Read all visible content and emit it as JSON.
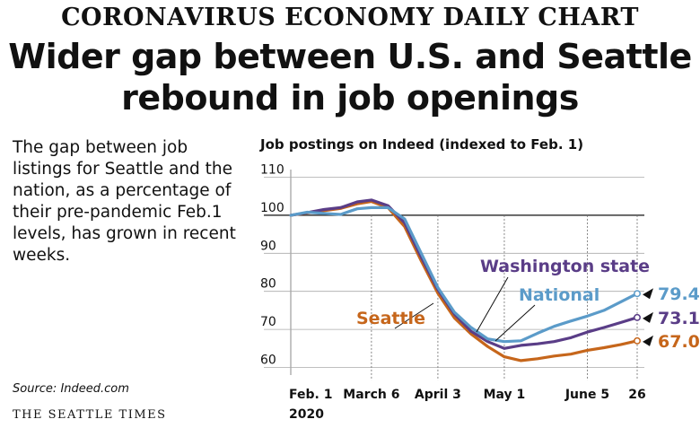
{
  "header": {
    "kicker": "CORONAVIRUS ECONOMY DAILY CHART",
    "headline_line1": "Wider gap between U.S. and Seattle",
    "headline_line2": "rebound in job openings"
  },
  "blurb": "The gap between job listings for Seattle and the nation, as a percentage of their pre-pandemic Feb.1 levels, has grown in recent weeks.",
  "source": "Source: Indeed.com",
  "credit": "THE SEATTLE TIMES",
  "chart_data": {
    "type": "line",
    "title": "Job postings on Indeed (indexed to Feb. 1)",
    "xlabel": "",
    "ylabel": "",
    "ylim": [
      58,
      112
    ],
    "y_ticks": [
      60,
      70,
      80,
      90,
      100,
      110
    ],
    "x_range": [
      "2020-02-01",
      "2020-06-26"
    ],
    "x_ticks": [
      {
        "date": "2020-02-01",
        "label": "Feb. 1",
        "sublabel": "2020"
      },
      {
        "date": "2020-03-06",
        "label": "March 6",
        "sublabel": ""
      },
      {
        "date": "2020-04-03",
        "label": "April 3",
        "sublabel": ""
      },
      {
        "date": "2020-05-01",
        "label": "May 1",
        "sublabel": ""
      },
      {
        "date": "2020-06-05",
        "label": "June 5",
        "sublabel": ""
      },
      {
        "date": "2020-06-26",
        "label": "26",
        "sublabel": ""
      }
    ],
    "reference_line": 100,
    "series": [
      {
        "name": "National",
        "color": "#5b9bc9",
        "end_label": "79.4",
        "points": [
          [
            "2020-02-01",
            100
          ],
          [
            "2020-02-08",
            100.8
          ],
          [
            "2020-02-15",
            100.5
          ],
          [
            "2020-02-22",
            100.2
          ],
          [
            "2020-02-29",
            101.7
          ],
          [
            "2020-03-06",
            102.0
          ],
          [
            "2020-03-13",
            102.0
          ],
          [
            "2020-03-20",
            99.0
          ],
          [
            "2020-03-27",
            90.0
          ],
          [
            "2020-04-03",
            81.0
          ],
          [
            "2020-04-10",
            74.5
          ],
          [
            "2020-04-17",
            70.5
          ],
          [
            "2020-04-24",
            67.5
          ],
          [
            "2020-05-01",
            66.8
          ],
          [
            "2020-05-08",
            67.0
          ],
          [
            "2020-05-15",
            69.0
          ],
          [
            "2020-05-22",
            70.8
          ],
          [
            "2020-05-29",
            72.2
          ],
          [
            "2020-06-05",
            73.5
          ],
          [
            "2020-06-12",
            75.0
          ],
          [
            "2020-06-19",
            77.2
          ],
          [
            "2020-06-26",
            79.4
          ]
        ]
      },
      {
        "name": "Washington state",
        "color": "#5a3d87",
        "end_label": "73.13",
        "points": [
          [
            "2020-02-01",
            100
          ],
          [
            "2020-02-08",
            100.7
          ],
          [
            "2020-02-15",
            101.5
          ],
          [
            "2020-02-22",
            102.0
          ],
          [
            "2020-02-29",
            103.5
          ],
          [
            "2020-03-06",
            104.0
          ],
          [
            "2020-03-13",
            102.5
          ],
          [
            "2020-03-20",
            98.0
          ],
          [
            "2020-03-27",
            89.0
          ],
          [
            "2020-04-03",
            80.5
          ],
          [
            "2020-04-10",
            74.0
          ],
          [
            "2020-04-17",
            69.5
          ],
          [
            "2020-04-24",
            66.8
          ],
          [
            "2020-05-01",
            65.0
          ],
          [
            "2020-05-08",
            65.8
          ],
          [
            "2020-05-15",
            66.2
          ],
          [
            "2020-05-22",
            66.8
          ],
          [
            "2020-05-29",
            67.8
          ],
          [
            "2020-06-05",
            69.3
          ],
          [
            "2020-06-12",
            70.5
          ],
          [
            "2020-06-19",
            71.8
          ],
          [
            "2020-06-26",
            73.13
          ]
        ]
      },
      {
        "name": "Seattle",
        "color": "#c6661b",
        "end_label": "67.0",
        "points": [
          [
            "2020-02-01",
            100
          ],
          [
            "2020-02-08",
            100.6
          ],
          [
            "2020-02-15",
            101.2
          ],
          [
            "2020-02-22",
            101.8
          ],
          [
            "2020-02-29",
            103.0
          ],
          [
            "2020-03-06",
            103.6
          ],
          [
            "2020-03-13",
            102.0
          ],
          [
            "2020-03-20",
            97.0
          ],
          [
            "2020-03-27",
            88.0
          ],
          [
            "2020-04-03",
            79.5
          ],
          [
            "2020-04-10",
            73.0
          ],
          [
            "2020-04-17",
            68.8
          ],
          [
            "2020-04-24",
            65.5
          ],
          [
            "2020-05-01",
            62.8
          ],
          [
            "2020-05-08",
            61.8
          ],
          [
            "2020-05-15",
            62.3
          ],
          [
            "2020-05-22",
            63.0
          ],
          [
            "2020-05-29",
            63.5
          ],
          [
            "2020-06-05",
            64.5
          ],
          [
            "2020-06-12",
            65.2
          ],
          [
            "2020-06-19",
            66.0
          ],
          [
            "2020-06-26",
            67.0
          ]
        ]
      }
    ],
    "legend": "labels placed directly on lines"
  }
}
